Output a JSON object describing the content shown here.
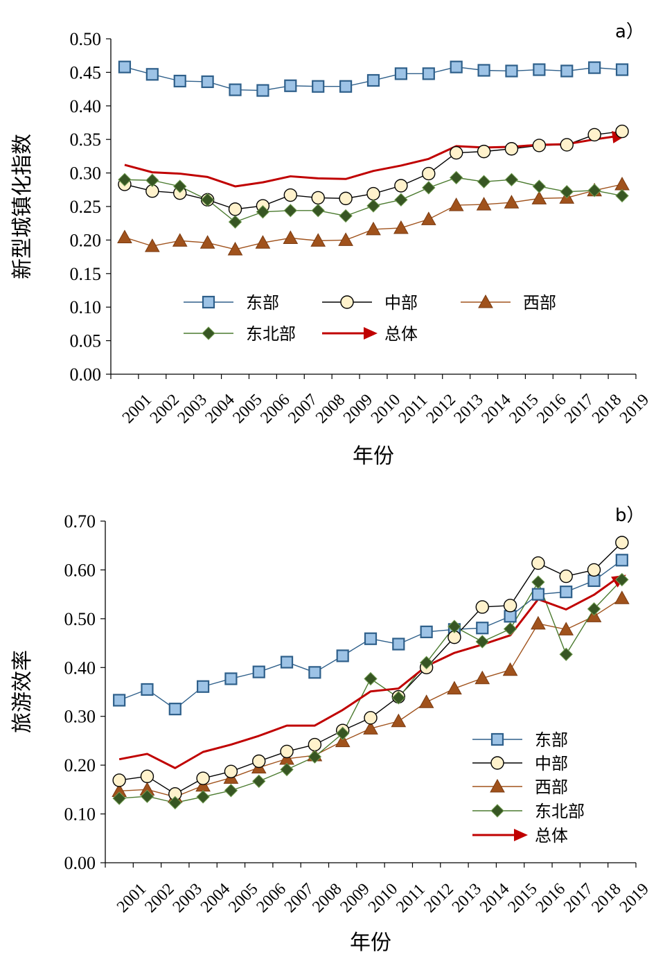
{
  "colors": {
    "east_line": "#2e5f8a",
    "east_fill": "#9dc3e6",
    "central_line": "#000000",
    "central_fill": "#fff2cc",
    "west_line": "#a0521c",
    "west_fill": "#a0521c",
    "northeast_line": "#4a7a2e",
    "northeast_fill": "#375623",
    "total_line": "#c00000",
    "axis": "#000000"
  },
  "icons": {
    "east": "square-marker",
    "central": "circle-marker",
    "west": "triangle-marker",
    "northeast": "diamond-marker",
    "total": "arrow-line"
  },
  "chart_data": [
    {
      "type": "line",
      "panel_label": "a）",
      "title": "",
      "xlabel": "年份",
      "ylabel": "新型城镇化指数",
      "ylim": [
        0,
        0.5
      ],
      "yticks": [
        "0.00",
        "0.05",
        "0.10",
        "0.15",
        "0.20",
        "0.25",
        "0.30",
        "0.35",
        "0.40",
        "0.45",
        "0.50"
      ],
      "grid": false,
      "legend_position": "inside-lower-middle",
      "x": [
        "2001",
        "2002",
        "2003",
        "2004",
        "2005",
        "2006",
        "2007",
        "2008",
        "2009",
        "2010",
        "2011",
        "2012",
        "2013",
        "2014",
        "2015",
        "2016",
        "2017",
        "2018",
        "2019"
      ],
      "series": [
        {
          "key": "east",
          "name": "东部",
          "marker": "square",
          "values": [
            0.458,
            0.447,
            0.437,
            0.436,
            0.424,
            0.423,
            0.43,
            0.429,
            0.429,
            0.438,
            0.448,
            0.448,
            0.458,
            0.453,
            0.452,
            0.454,
            0.452,
            0.457,
            0.454
          ]
        },
        {
          "key": "central",
          "name": "中部",
          "marker": "circle",
          "values": [
            0.283,
            0.273,
            0.27,
            0.26,
            0.246,
            0.251,
            0.267,
            0.263,
            0.262,
            0.269,
            0.281,
            0.299,
            0.33,
            0.332,
            0.336,
            0.341,
            0.342,
            0.357,
            0.362
          ]
        },
        {
          "key": "west",
          "name": "西部",
          "marker": "triangle",
          "values": [
            0.204,
            0.191,
            0.199,
            0.196,
            0.186,
            0.196,
            0.203,
            0.199,
            0.2,
            0.216,
            0.218,
            0.231,
            0.252,
            0.253,
            0.256,
            0.262,
            0.263,
            0.274,
            0.283
          ]
        },
        {
          "key": "northeast",
          "name": "东北部",
          "marker": "diamond",
          "values": [
            0.29,
            0.289,
            0.28,
            0.26,
            0.227,
            0.242,
            0.244,
            0.244,
            0.236,
            0.251,
            0.26,
            0.278,
            0.293,
            0.287,
            0.29,
            0.28,
            0.272,
            0.274,
            0.266
          ]
        },
        {
          "key": "total",
          "name": "总体",
          "marker": "arrow",
          "values": [
            0.312,
            0.301,
            0.299,
            0.294,
            0.28,
            0.286,
            0.295,
            0.292,
            0.291,
            0.303,
            0.311,
            0.321,
            0.34,
            0.338,
            0.339,
            0.342,
            0.343,
            0.35,
            0.356
          ]
        }
      ]
    },
    {
      "type": "line",
      "panel_label": "b）",
      "title": "",
      "xlabel": "年份",
      "ylabel": "旅游效率",
      "ylim": [
        0,
        0.7
      ],
      "yticks": [
        "0.00",
        "0.10",
        "0.20",
        "0.30",
        "0.40",
        "0.50",
        "0.60",
        "0.70"
      ],
      "grid": false,
      "legend_position": "inside-lower-right",
      "x": [
        "2001",
        "2002",
        "2003",
        "2004",
        "2005",
        "2006",
        "2007",
        "2008",
        "2009",
        "2010",
        "2011",
        "2012",
        "2013",
        "2014",
        "2015",
        "2016",
        "2017",
        "2018",
        "2019"
      ],
      "series": [
        {
          "key": "east",
          "name": "东部",
          "marker": "square",
          "values": [
            0.333,
            0.355,
            0.315,
            0.361,
            0.377,
            0.391,
            0.411,
            0.39,
            0.424,
            0.459,
            0.448,
            0.473,
            0.478,
            0.481,
            0.505,
            0.55,
            0.555,
            0.578,
            0.62
          ]
        },
        {
          "key": "central",
          "name": "中部",
          "marker": "circle",
          "values": [
            0.169,
            0.177,
            0.141,
            0.173,
            0.187,
            0.208,
            0.228,
            0.242,
            0.271,
            0.297,
            0.34,
            0.4,
            0.462,
            0.524,
            0.527,
            0.614,
            0.587,
            0.6,
            0.656
          ]
        },
        {
          "key": "west",
          "name": "西部",
          "marker": "triangle",
          "values": [
            0.147,
            0.15,
            0.135,
            0.158,
            0.174,
            0.195,
            0.213,
            0.22,
            0.249,
            0.275,
            0.29,
            0.329,
            0.357,
            0.378,
            0.395,
            0.49,
            0.478,
            0.505,
            0.542
          ]
        },
        {
          "key": "northeast",
          "name": "东北部",
          "marker": "diamond",
          "values": [
            0.132,
            0.136,
            0.123,
            0.135,
            0.148,
            0.167,
            0.191,
            0.217,
            0.265,
            0.377,
            0.338,
            0.41,
            0.484,
            0.453,
            0.479,
            0.575,
            0.427,
            0.52,
            0.58
          ]
        },
        {
          "key": "total",
          "name": "总体",
          "marker": "arrow",
          "values": [
            0.212,
            0.223,
            0.194,
            0.227,
            0.242,
            0.26,
            0.281,
            0.281,
            0.313,
            0.351,
            0.357,
            0.403,
            0.43,
            0.447,
            0.466,
            0.54,
            0.519,
            0.549,
            0.59
          ]
        }
      ]
    }
  ]
}
